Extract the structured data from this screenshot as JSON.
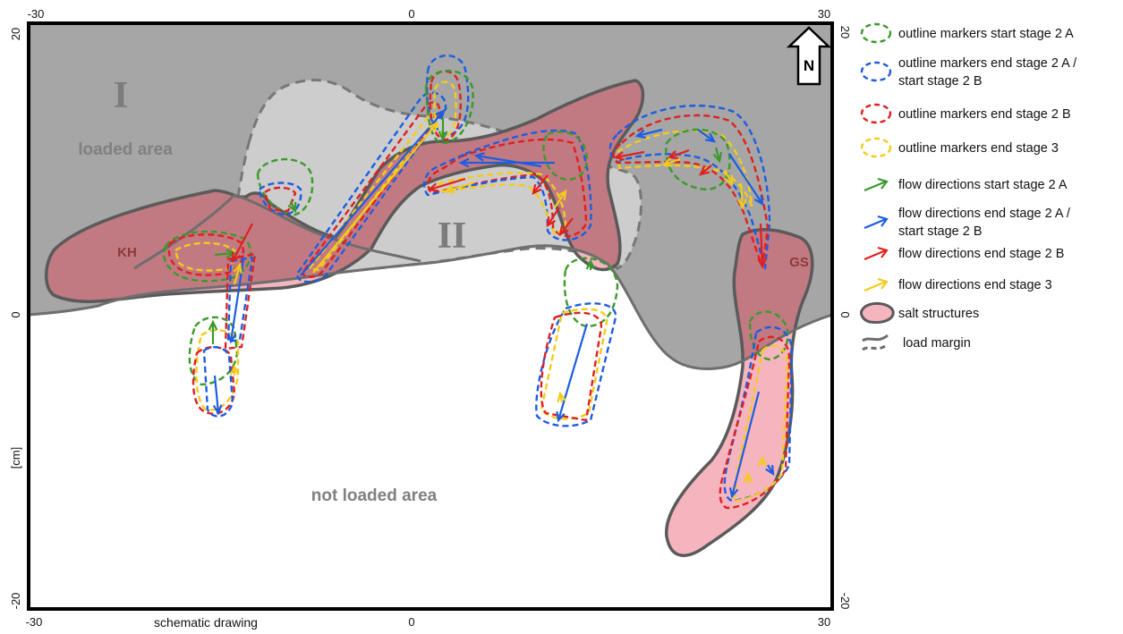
{
  "frame": {
    "top_ticks": [
      "-30",
      "0",
      "30"
    ],
    "bottom_ticks": [
      "-30",
      "0",
      "30"
    ],
    "left_ticks": [
      "20",
      "0",
      "-20"
    ],
    "right_ticks": [
      "20",
      "0",
      "-20"
    ],
    "axis_unit": "[cm]",
    "caption": "schematic drawing"
  },
  "labels": {
    "zone_1": "I",
    "zone_2": "II",
    "loaded_area": "loaded area",
    "not_loaded_area": "not loaded area",
    "salt_kh": "KH",
    "salt_gs": "GS",
    "north": "N"
  },
  "legend": [
    {
      "text": [
        "outline markers start stage 2 A"
      ],
      "kind": "outline",
      "color": "#3a9a2a",
      "name": "legend-outline-start-2a"
    },
    {
      "text": [
        "outline markers end stage 2 A /",
        "start stage 2 B"
      ],
      "kind": "outline",
      "color": "#1e5de0",
      "name": "legend-outline-end-2a"
    },
    {
      "text": [
        "outline markers end stage 2 B"
      ],
      "kind": "outline",
      "color": "#e02020",
      "name": "legend-outline-end-2b"
    },
    {
      "text": [
        "outline markers end stage 3"
      ],
      "kind": "outline",
      "color": "#f2cc1c",
      "name": "legend-outline-end-3"
    },
    {
      "text": [
        "flow directions start stage 2 A"
      ],
      "kind": "arrow",
      "color": "#3a9a2a",
      "name": "legend-flow-start-2a"
    },
    {
      "text": [
        "flow directions end stage 2 A /",
        "start stage 2 B"
      ],
      "kind": "arrow",
      "color": "#1e5de0",
      "name": "legend-flow-end-2a"
    },
    {
      "text": [
        "flow directions end stage 2 B"
      ],
      "kind": "arrow",
      "color": "#e02020",
      "name": "legend-flow-end-2b"
    },
    {
      "text": [
        "flow directions end stage 3"
      ],
      "kind": "arrow",
      "color": "#f2cc1c",
      "name": "legend-flow-end-3"
    },
    {
      "text": [
        "salt structures"
      ],
      "kind": "salt",
      "name": "legend-salt-structures"
    },
    {
      "text": [
        "load margin"
      ],
      "kind": "margin",
      "name": "legend-load-margin"
    }
  ],
  "colors": {
    "loaded_area": "#a6a6a6",
    "zone_2_fill": "#cdcdcd",
    "salt_loaded": "#c27a82",
    "salt_unloaded": "#f5b5bf",
    "salt_outline": "#5a5a5a",
    "green": "#3a9a2a",
    "blue": "#1e5de0",
    "red": "#e02020",
    "yellow": "#f2cc1c"
  }
}
